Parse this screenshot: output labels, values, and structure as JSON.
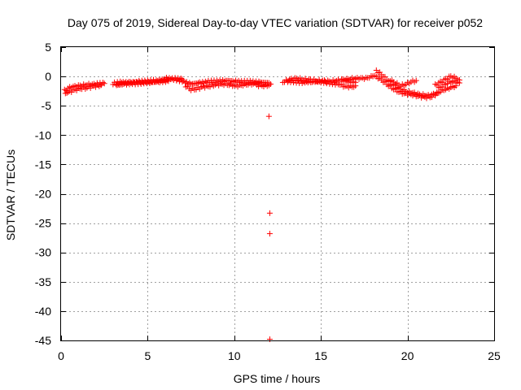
{
  "chart_data": {
    "type": "scatter",
    "title": "Day 075 of 2019, Sidereal Day-to-day VTEC variation (SDTVAR) for receiver p052",
    "xlabel": "GPS time / hours",
    "ylabel": "SDTVAR / TECUs",
    "xlim": [
      0,
      25
    ],
    "ylim": [
      -45,
      5
    ],
    "xticks": [
      0,
      5,
      10,
      15,
      20,
      25
    ],
    "yticks": [
      5,
      0,
      -5,
      -10,
      -15,
      -20,
      -25,
      -30,
      -35,
      -40,
      -45
    ],
    "xtick_labels": [
      "0",
      "5",
      "10",
      "15",
      "20",
      "25"
    ],
    "ytick_labels": [
      "5",
      "0",
      "-5",
      "-10",
      "-15",
      "-20",
      "-25",
      "-30",
      "-35",
      "-40",
      "-45"
    ],
    "grid": true,
    "marker": "+",
    "color": "#ff0000",
    "series": [
      {
        "name": "SDTVAR",
        "tracks": [
          [
            [
              0.2,
              -2.4
            ],
            [
              0.4,
              -2.0
            ],
            [
              0.6,
              -1.8
            ],
            [
              0.9,
              -1.6
            ],
            [
              1.2,
              -1.5
            ],
            [
              1.6,
              -1.4
            ],
            [
              2.0,
              -1.3
            ],
            [
              2.5,
              -1.2
            ]
          ],
          [
            [
              0.25,
              -2.9
            ],
            [
              0.5,
              -2.6
            ],
            [
              0.8,
              -2.3
            ],
            [
              1.1,
              -2.1
            ],
            [
              1.5,
              -1.9
            ],
            [
              1.9,
              -1.7
            ],
            [
              2.3,
              -1.5
            ]
          ],
          [
            [
              3.0,
              -1.2
            ],
            [
              3.5,
              -1.0
            ],
            [
              4.0,
              -1.0
            ],
            [
              4.5,
              -0.9
            ],
            [
              5.0,
              -0.8
            ],
            [
              5.5,
              -0.7
            ],
            [
              6.0,
              -0.5
            ],
            [
              6.5,
              -0.4
            ],
            [
              7.0,
              -0.5
            ]
          ],
          [
            [
              3.2,
              -1.5
            ],
            [
              3.7,
              -1.3
            ],
            [
              4.2,
              -1.2
            ],
            [
              4.7,
              -1.1
            ],
            [
              5.2,
              -1.0
            ],
            [
              5.7,
              -0.9
            ],
            [
              6.2,
              -0.8
            ]
          ],
          [
            [
              6.0,
              -0.3
            ],
            [
              6.5,
              -0.4
            ],
            [
              7.0,
              -0.8
            ],
            [
              7.5,
              -1.3
            ],
            [
              8.0,
              -1.1
            ],
            [
              8.5,
              -0.9
            ],
            [
              9.0,
              -0.8
            ],
            [
              9.5,
              -0.7
            ],
            [
              10.0,
              -0.8
            ],
            [
              10.5,
              -0.9
            ],
            [
              11.0,
              -0.9
            ],
            [
              11.5,
              -1.0
            ],
            [
              12.0,
              -1.1
            ]
          ],
          [
            [
              7.2,
              -1.6
            ],
            [
              7.5,
              -2.2
            ],
            [
              7.8,
              -2.1
            ],
            [
              8.2,
              -1.8
            ],
            [
              8.6,
              -1.6
            ],
            [
              9.0,
              -1.4
            ],
            [
              9.4,
              -1.3
            ],
            [
              9.8,
              -1.5
            ],
            [
              10.2,
              -1.6
            ],
            [
              10.6,
              -1.4
            ],
            [
              11.0,
              -1.3
            ],
            [
              11.4,
              -1.2
            ]
          ],
          [
            [
              11.3,
              -1.5
            ],
            [
              11.6,
              -1.6
            ],
            [
              11.9,
              -1.6
            ],
            [
              12.1,
              -1.3
            ]
          ],
          [
            [
              12.0,
              -6.8
            ]
          ],
          [
            [
              12.05,
              -23.3
            ]
          ],
          [
            [
              12.05,
              -26.8
            ]
          ],
          [
            [
              12.05,
              -44.8
            ]
          ],
          [
            [
              12.8,
              -1.0
            ],
            [
              13.2,
              -0.5
            ],
            [
              13.6,
              -0.4
            ],
            [
              14.0,
              -0.5
            ],
            [
              14.4,
              -0.6
            ],
            [
              14.8,
              -0.7
            ],
            [
              15.2,
              -0.8
            ],
            [
              15.6,
              -0.8
            ],
            [
              16.0,
              -0.7
            ],
            [
              16.4,
              -0.5
            ],
            [
              16.8,
              -0.4
            ],
            [
              17.2,
              -0.3
            ],
            [
              17.6,
              -0.3
            ],
            [
              18.0,
              0.0
            ]
          ],
          [
            [
              13.0,
              -0.8
            ],
            [
              13.5,
              -0.9
            ],
            [
              14.0,
              -1.0
            ],
            [
              14.5,
              -0.9
            ],
            [
              15.0,
              -0.9
            ],
            [
              15.5,
              -1.1
            ],
            [
              16.0,
              -1.3
            ],
            [
              16.4,
              -1.7
            ],
            [
              16.8,
              -1.8
            ],
            [
              17.0,
              -1.6
            ]
          ],
          [
            [
              16.2,
              -0.6
            ],
            [
              16.6,
              -0.8
            ],
            [
              17.0,
              -1.0
            ]
          ],
          [
            [
              18.2,
              1.0
            ],
            [
              18.5,
              0.3
            ],
            [
              18.8,
              -0.5
            ],
            [
              19.1,
              -1.2
            ],
            [
              19.4,
              -1.8
            ],
            [
              19.7,
              -2.3
            ],
            [
              20.0,
              -2.6
            ],
            [
              20.4,
              -2.9
            ],
            [
              20.8,
              -3.1
            ],
            [
              21.2,
              -3.3
            ],
            [
              21.6,
              -2.9
            ],
            [
              22.0,
              -2.4
            ],
            [
              22.4,
              -2.0
            ],
            [
              22.8,
              -1.6
            ]
          ],
          [
            [
              18.0,
              0.2
            ],
            [
              18.3,
              -0.2
            ],
            [
              18.6,
              -0.8
            ],
            [
              18.9,
              -1.5
            ],
            [
              19.2,
              -2.1
            ],
            [
              19.5,
              -2.6
            ],
            [
              19.8,
              -2.9
            ],
            [
              20.2,
              -3.1
            ],
            [
              20.6,
              -3.3
            ],
            [
              21.0,
              -3.6
            ],
            [
              21.4,
              -3.4
            ],
            [
              21.8,
              -2.8
            ]
          ],
          [
            [
              19.0,
              -0.6
            ],
            [
              19.3,
              -1.1
            ],
            [
              19.6,
              -1.6
            ],
            [
              19.9,
              -1.3
            ],
            [
              20.2,
              -0.9
            ],
            [
              20.5,
              -0.7
            ]
          ],
          [
            [
              21.6,
              -1.5
            ],
            [
              21.9,
              -1.0
            ],
            [
              22.2,
              -0.5
            ],
            [
              22.5,
              0.0
            ],
            [
              22.8,
              -0.3
            ],
            [
              23.0,
              -0.6
            ]
          ],
          [
            [
              21.8,
              -2.0
            ],
            [
              22.1,
              -1.5
            ],
            [
              22.4,
              -1.0
            ],
            [
              22.7,
              -0.9
            ],
            [
              23.0,
              -1.1
            ]
          ]
        ]
      }
    ]
  }
}
